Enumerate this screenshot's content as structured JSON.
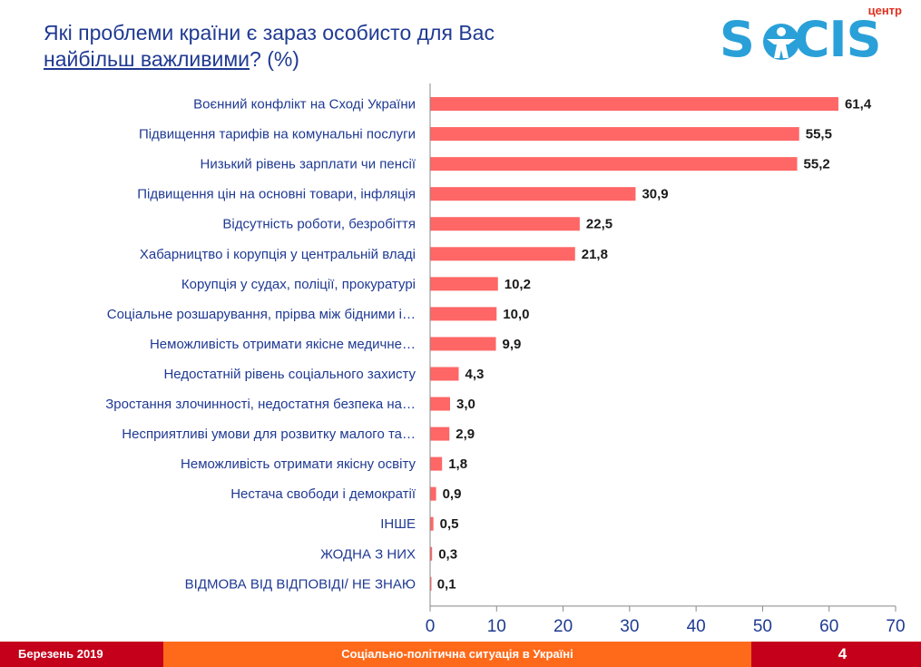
{
  "title": {
    "line1": "Які проблеми країни є зараз особисто для Вас",
    "line2_underlined": "найбільш важливими",
    "line2_rest": "? (%)"
  },
  "logo": {
    "top_text": "центр",
    "brand": "SOCIS"
  },
  "colors": {
    "bar": "#ff6666",
    "title": "#1f3a93",
    "axis": "#1f3a93",
    "value": "#1a1a1a"
  },
  "chart_data": {
    "type": "bar",
    "orientation": "horizontal",
    "xlim": [
      0,
      70
    ],
    "xticks": [
      0,
      10,
      20,
      30,
      40,
      50,
      60,
      70
    ],
    "grid": false,
    "categories": [
      "Воєнний конфлікт на Сході України",
      "Підвищення тарифів на комунальні послуги",
      "Низький рівень зарплати чи пенсії",
      "Підвищення цін на основні товари, інфляція",
      "Відсутність роботи, безробіття",
      "Хабарництво і корупція у центральній владі",
      "Корупція у судах, поліції, прокуратурі",
      "Соціальне розшарування, прірва між бідними і…",
      "Неможливість отримати якісне медичне…",
      "Недостатній рівень соціального захисту",
      "Зростання злочинності, недостатня безпека на…",
      "Несприятливі умови для розвитку малого та…",
      "Неможливість отримати якісну освіту",
      "Нестача свободи і демократії",
      "ІНШЕ",
      "ЖОДНА З НИХ",
      "ВІДМОВА ВІД ВІДПОВІДІ/ НЕ ЗНАЮ"
    ],
    "values": [
      61.4,
      55.5,
      55.2,
      30.9,
      22.5,
      21.8,
      10.2,
      10.0,
      9.9,
      4.3,
      3.0,
      2.9,
      1.8,
      0.9,
      0.5,
      0.3,
      0.1
    ],
    "value_labels": [
      "61,4",
      "55,5",
      "55,2",
      "30,9",
      "22,5",
      "21,8",
      "10,2",
      "10,0",
      "9,9",
      "4,3",
      "3,0",
      "2,9",
      "1,8",
      "0,9",
      "0,5",
      "0,3",
      "0,1"
    ]
  },
  "footer": {
    "date": "Березень 2019",
    "subtitle": "Соціально-політична ситуація в Україні",
    "page": "4"
  }
}
